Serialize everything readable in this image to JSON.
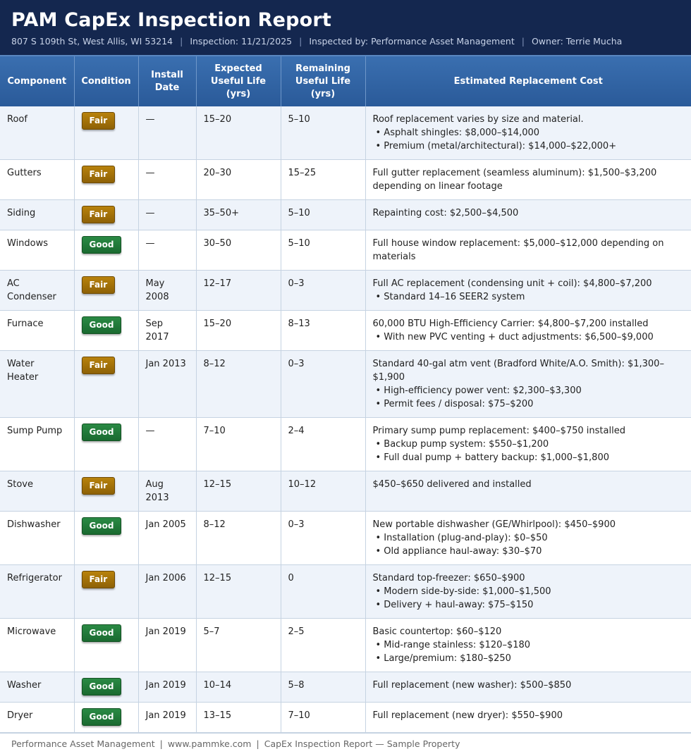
{
  "header": {
    "title": "PAM CapEx Inspection Report",
    "address": "807 S 109th St, West Allis, WI 53214",
    "inspection": "Inspection: 11/21/2025",
    "inspected_by": "Inspected by: Performance Asset Management",
    "owner": "Owner: Terrie Mucha"
  },
  "columns": [
    "Component",
    "Condition",
    "Install Date",
    "Expected Useful Life (yrs)",
    "Remaining Useful Life (yrs)",
    "Estimated Replacement Cost"
  ],
  "rows": [
    {
      "component": "Roof",
      "condition": "Fair",
      "install": "—",
      "expected": "15–20",
      "remaining": "5–10",
      "cost": [
        "Roof replacement varies by size and material.",
        "• Asphalt shingles: $8,000–$14,000",
        "• Premium (metal/architectural): $14,000–$22,000+"
      ]
    },
    {
      "component": "Gutters",
      "condition": "Fair",
      "install": "—",
      "expected": "20–30",
      "remaining": "15–25",
      "cost": [
        "Full gutter replacement (seamless aluminum): $1,500–$3,200 depending on linear footage"
      ]
    },
    {
      "component": "Siding",
      "condition": "Fair",
      "install": "—",
      "expected": "35–50+",
      "remaining": "5–10",
      "cost": [
        "Repainting cost: $2,500–$4,500"
      ]
    },
    {
      "component": "Windows",
      "condition": "Good",
      "install": "—",
      "expected": "30–50",
      "remaining": "5–10",
      "cost": [
        "Full house window replacement: $5,000–$12,000 depending on materials"
      ]
    },
    {
      "component": "AC Condenser",
      "condition": "Fair",
      "install": "May 2008",
      "expected": "12–17",
      "remaining": "0–3",
      "cost": [
        "Full AC replacement (condensing unit + coil): $4,800–$7,200",
        "• Standard 14–16 SEER2 system"
      ]
    },
    {
      "component": "Furnace",
      "condition": "Good",
      "install": "Sep 2017",
      "expected": "15–20",
      "remaining": "8–13",
      "cost": [
        "60,000 BTU High-Efficiency Carrier: $4,800–$7,200 installed",
        "• With new PVC venting + duct adjustments: $6,500–$9,000"
      ]
    },
    {
      "component": "Water Heater",
      "condition": "Fair",
      "install": "Jan 2013",
      "expected": "8–12",
      "remaining": "0–3",
      "cost": [
        "Standard 40-gal atm vent (Bradford White/A.O. Smith): $1,300–$1,900",
        "• High-efficiency power vent: $2,300–$3,300",
        "• Permit fees / disposal: $75–$200"
      ]
    },
    {
      "component": "Sump Pump",
      "condition": "Good",
      "install": "—",
      "expected": "7–10",
      "remaining": "2–4",
      "cost": [
        "Primary sump pump replacement: $400–$750 installed",
        "• Backup pump system: $550–$1,200",
        "• Full dual pump + battery backup: $1,000–$1,800"
      ]
    },
    {
      "component": "Stove",
      "condition": "Fair",
      "install": "Aug 2013",
      "expected": "12–15",
      "remaining": "10–12",
      "cost": [
        "$450–$650 delivered and installed"
      ]
    },
    {
      "component": "Dishwasher",
      "condition": "Good",
      "install": "Jan 2005",
      "expected": "8–12",
      "remaining": "0–3",
      "cost": [
        "New portable dishwasher (GE/Whirlpool): $450–$900",
        "• Installation (plug-and-play): $0–$50",
        "• Old appliance haul-away: $30–$70"
      ]
    },
    {
      "component": "Refrigerator",
      "condition": "Fair",
      "install": "Jan 2006",
      "expected": "12–15",
      "remaining": "0",
      "cost": [
        "Standard top-freezer: $650–$900",
        "• Modern side-by-side: $1,000–$1,500",
        "• Delivery + haul-away: $75–$150"
      ]
    },
    {
      "component": "Microwave",
      "condition": "Good",
      "install": "Jan 2019",
      "expected": "5–7",
      "remaining": "2–5",
      "cost": [
        "Basic countertop: $60–$120",
        "• Mid-range stainless: $120–$180",
        "• Large/premium: $180–$250"
      ]
    },
    {
      "component": "Washer",
      "condition": "Good",
      "install": "Jan 2019",
      "expected": "10–14",
      "remaining": "5–8",
      "cost": [
        "Full replacement (new washer): $500–$850"
      ]
    },
    {
      "component": "Dryer",
      "condition": "Good",
      "install": "Jan 2019",
      "expected": "13–15",
      "remaining": "7–10",
      "cost": [
        "Full replacement (new dryer): $550–$900"
      ]
    }
  ],
  "footer": {
    "company": "Performance Asset Management",
    "website": "www.pammke.com",
    "report": "CapEx Inspection Report — Sample Property"
  }
}
